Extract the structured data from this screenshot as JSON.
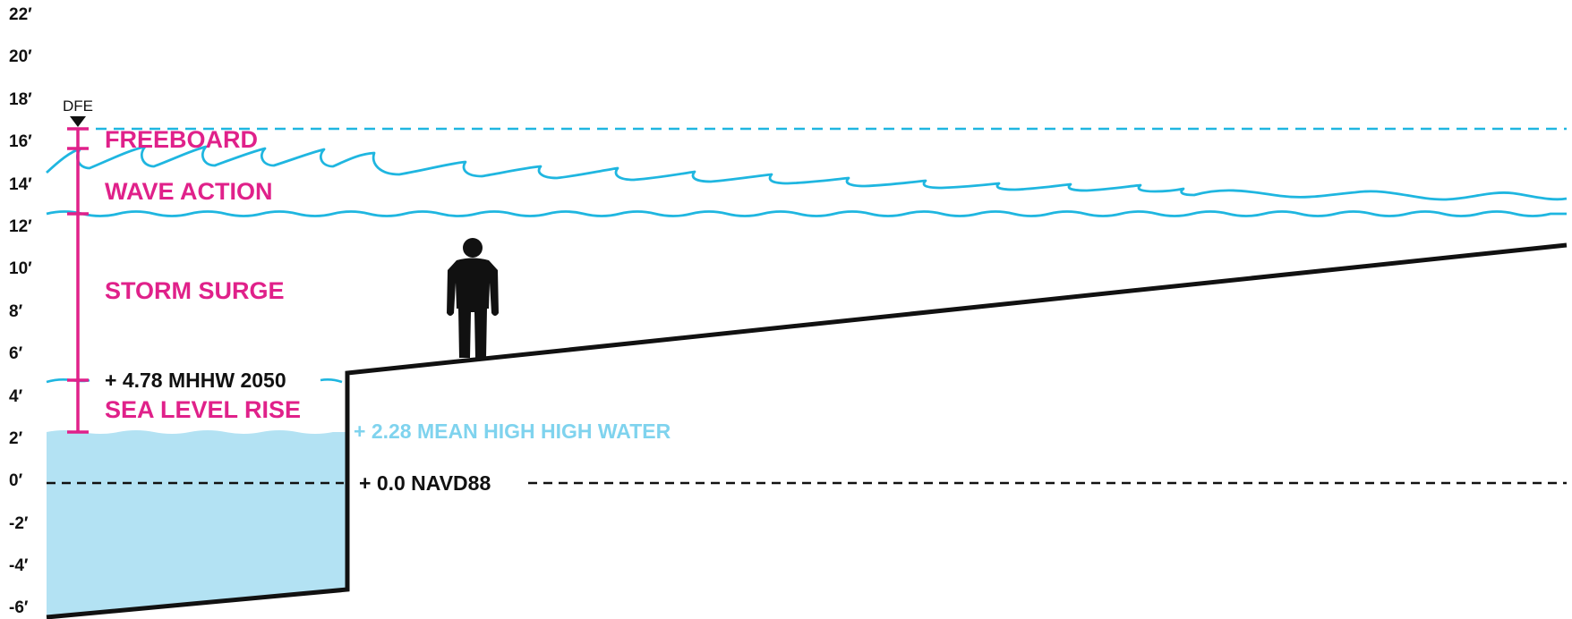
{
  "axis": {
    "unit_suffix": "′",
    "ticks": [
      "22′",
      "20′",
      "18′",
      "16′",
      "14′",
      "12′",
      "10′",
      "8′",
      "6′",
      "4′",
      "2′",
      "0′",
      "-2′",
      "-4′",
      "-6′"
    ]
  },
  "dfe_label": "DFE",
  "segments": {
    "freeboard": "FREEBOARD",
    "wave_action": "WAVE ACTION",
    "storm_surge": "STORM SURGE",
    "sea_level_rise": "SEA LEVEL RISE"
  },
  "levels": {
    "mhhw_2050": "+ 4.78 MHHW 2050",
    "mean_high_high_water": "+ 2.28 MEAN HIGH HIGH WATER",
    "navd88": "+ 0.0 NAVD88"
  },
  "icons": {
    "person": "person-icon",
    "dfe_marker": "triangle-down-icon"
  },
  "colors": {
    "magenta": "#e0218a",
    "water_line": "#1fb6e0",
    "water_fill": "#b3e2f3",
    "mhhw_text": "#7fd3ee",
    "ink": "#111111"
  }
}
